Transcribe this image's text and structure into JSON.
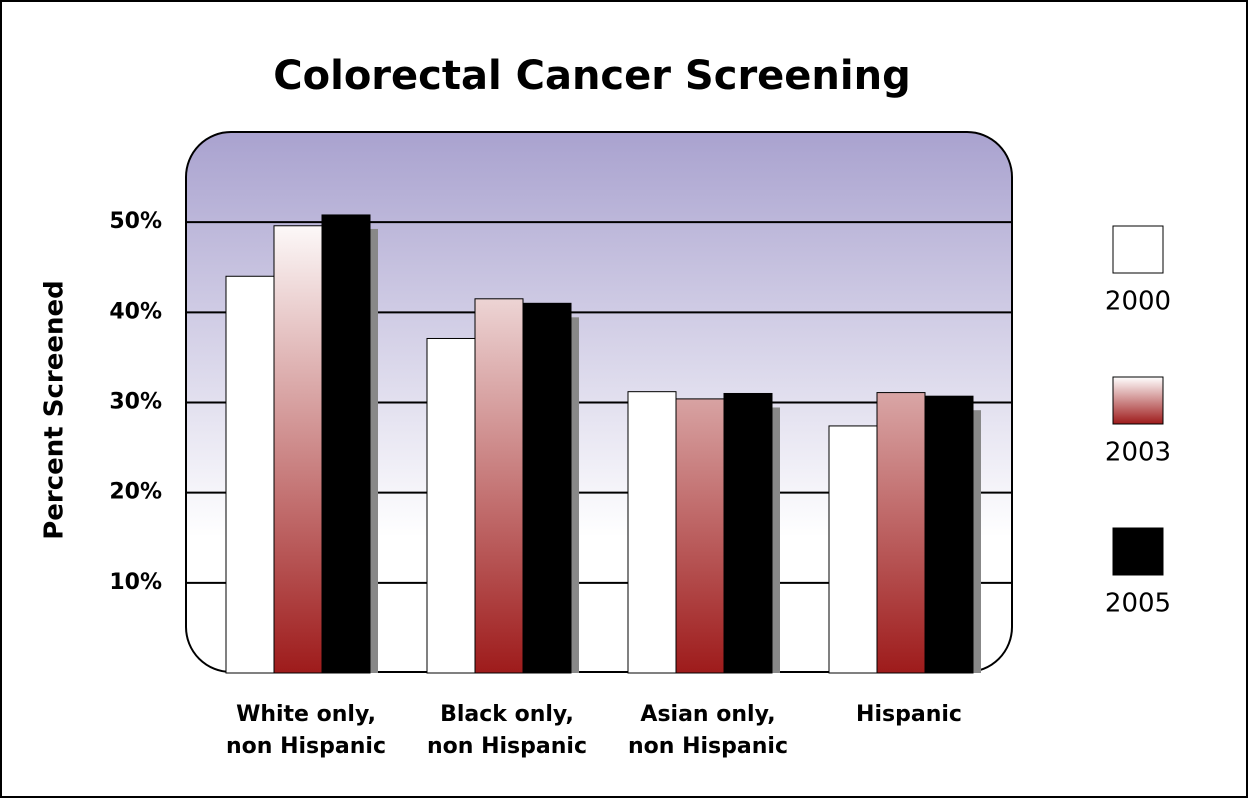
{
  "chart_data": {
    "type": "bar",
    "title": "Colorectal Cancer Screening",
    "y_label": "Percent Screened",
    "categories": [
      [
        "White only,",
        "non Hispanic"
      ],
      [
        "Black only,",
        "non Hispanic"
      ],
      [
        "Asian only,",
        "non Hispanic"
      ],
      [
        "Hispanic"
      ]
    ],
    "series": [
      {
        "name": "2000",
        "color": "#ffffff",
        "values": [
          44,
          37.1,
          31.2,
          27.4
        ]
      },
      {
        "name": "2003",
        "color": "#9e1b1b",
        "gradient": true,
        "values": [
          49.6,
          41.5,
          30.4,
          31.1
        ]
      },
      {
        "name": "2005",
        "color": "#000000",
        "values": [
          50.8,
          41,
          31,
          30.7
        ]
      }
    ],
    "ylim": [
      0,
      60
    ],
    "yticks": [
      {
        "value": 10,
        "label": "10%"
      },
      {
        "value": 20,
        "label": "20%"
      },
      {
        "value": 30,
        "label": "30%"
      },
      {
        "value": 40,
        "label": "40%"
      },
      {
        "value": 50,
        "label": "50%"
      }
    ],
    "grid": true,
    "legend": "right"
  }
}
